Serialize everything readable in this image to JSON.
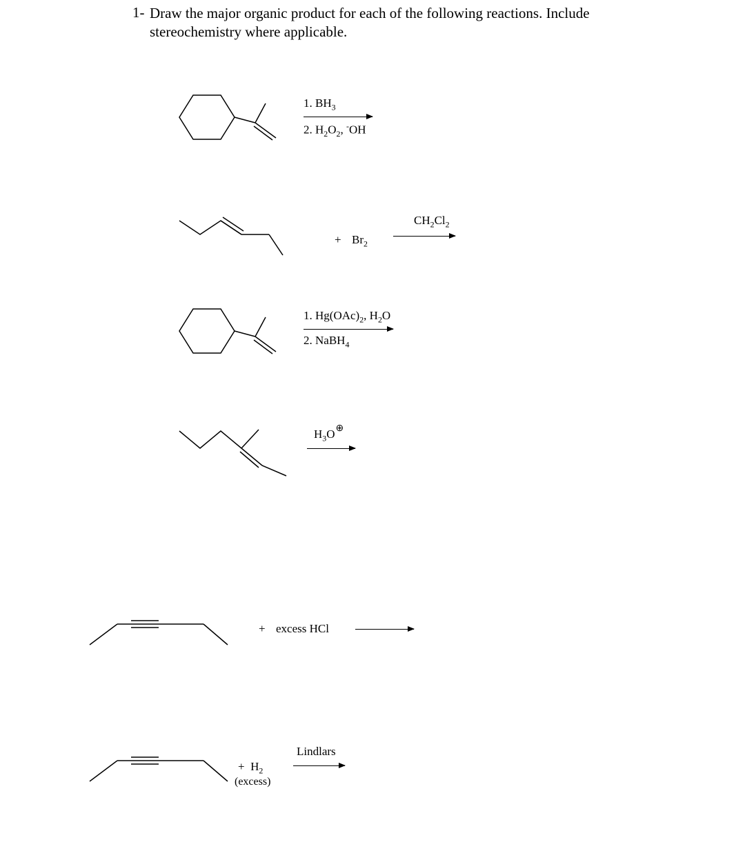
{
  "question": {
    "number": "1-",
    "text": "Draw the major organic product for each of the following reactions. Include stereochemistry where applicable."
  },
  "reactions": [
    {
      "reagent_top": "1. BH₃",
      "reagent_bottom": "2. H₂O₂, ⁻OH",
      "top_html": "1. BH<sub>3</sub>",
      "bottom_html": "2. H<sub>2</sub>O<sub>2</sub>, <sup>-</sup>OH"
    },
    {
      "plus": "+",
      "reagent": "Br₂",
      "reagent_html": "Br<sub>2</sub>",
      "solvent": "CH₂Cl₂",
      "solvent_html": "CH<sub>2</sub>Cl<sub>2</sub>"
    },
    {
      "top_html": "1. Hg(OAc)<sub>2</sub>, H<sub>2</sub>O",
      "bottom_html": "2. NaBH<sub>4</sub>"
    },
    {
      "top_html": "H<sub>3</sub>O",
      "charge": "⊕"
    },
    {
      "plus": "+",
      "reagent": "excess HCl"
    },
    {
      "plus": "+",
      "h2_html": "H<sub>2</sub>",
      "excess": "(excess)",
      "catalyst": "Lindlars"
    }
  ],
  "colors": {
    "text": "#000000",
    "background": "#ffffff",
    "stroke": "#000000"
  }
}
